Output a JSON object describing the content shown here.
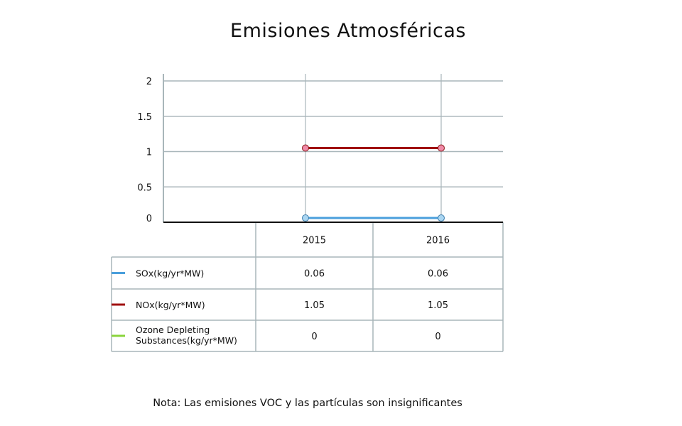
{
  "chart_data": {
    "type": "line",
    "title": "Emisiones Atmosféricas",
    "categories": [
      "2015",
      "2016"
    ],
    "ylim": [
      0,
      2
    ],
    "yticks": [
      "0",
      "0.5",
      "1",
      "1.5",
      "2"
    ],
    "grid": true,
    "series": [
      {
        "name": "SOx(kg/yr*MW)",
        "values": [
          0.06,
          0.06
        ],
        "display": [
          "0.06",
          "0.06"
        ],
        "color": "#4a9fdc",
        "marker_fill": "#aad6f2",
        "marker_stroke": "#3f7fae"
      },
      {
        "name": "NOx(kg/yr*MW)",
        "values": [
          1.05,
          1.05
        ],
        "display": [
          "1.05",
          "1.05"
        ],
        "color": "#a01010",
        "marker_fill": "#f08aa8",
        "marker_stroke": "#8a1818"
      },
      {
        "name": "Ozone Depleting Substances(kg/yr*MW)",
        "values": [
          0,
          0
        ],
        "display": [
          "0",
          "0"
        ],
        "color": "#8ad43c"
      }
    ]
  },
  "footnote": "Nota: Las emisiones VOC y las partículas son insignificantes",
  "colors": {
    "grid": "#a9b6ba",
    "axis": "#111111"
  }
}
